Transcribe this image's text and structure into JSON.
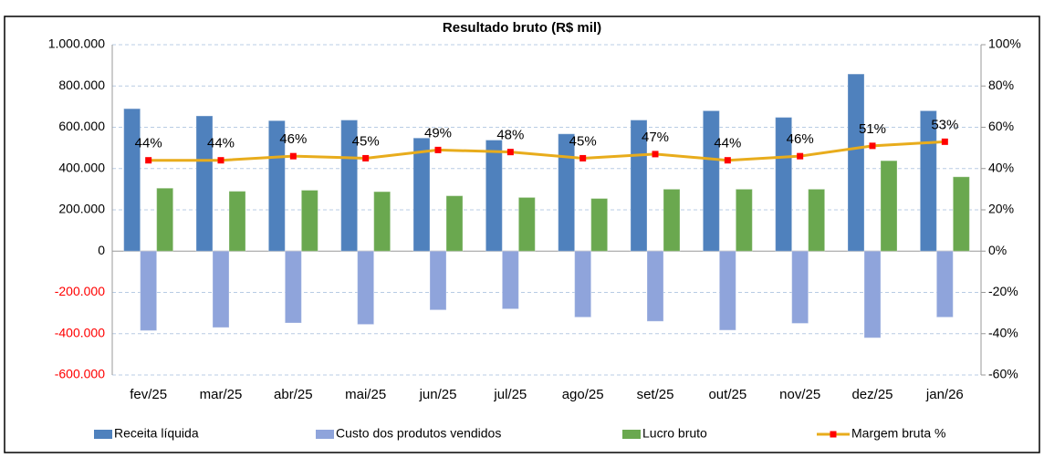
{
  "chart_data": {
    "type": "bar_line",
    "title": "Resultado bruto (R$ mil)",
    "categories": [
      "fev/25",
      "mar/25",
      "abr/25",
      "mai/25",
      "jun/25",
      "jul/25",
      "ago/25",
      "set/25",
      "out/25",
      "nov/25",
      "dez/25",
      "jan/26"
    ],
    "series": [
      {
        "name": "Receita líquida",
        "type": "bar",
        "color": "#4f81bd",
        "values": [
          690000,
          655000,
          632000,
          635000,
          548000,
          538000,
          568000,
          635000,
          680000,
          648000,
          858000,
          680000
        ]
      },
      {
        "name": "Custo dos produtos vendidos",
        "type": "bar",
        "color": "#8fa4db",
        "values": [
          -385000,
          -370000,
          -348000,
          -355000,
          -285000,
          -280000,
          -320000,
          -340000,
          -383000,
          -350000,
          -420000,
          -320000
        ]
      },
      {
        "name": "Lucro bruto",
        "type": "bar",
        "color": "#6aa84f",
        "values": [
          305000,
          290000,
          295000,
          288000,
          268000,
          260000,
          255000,
          300000,
          300000,
          300000,
          438000,
          360000
        ]
      },
      {
        "name": "Margem bruta %",
        "type": "line",
        "axis": "y2",
        "color": "#e8ac1c",
        "marker_color": "#ff0000",
        "values": [
          44,
          44,
          46,
          45,
          49,
          48,
          45,
          47,
          44,
          46,
          51,
          53
        ],
        "value_labels": [
          "44%",
          "44%",
          "46%",
          "45%",
          "49%",
          "48%",
          "45%",
          "47%",
          "44%",
          "46%",
          "51%",
          "53%"
        ]
      }
    ],
    "ylim": [
      -600000,
      1000000
    ],
    "yticks": [
      {
        "value": -600000,
        "label": "-600.000"
      },
      {
        "value": -400000,
        "label": "-400.000"
      },
      {
        "value": -200000,
        "label": "-200.000"
      },
      0,
      {
        "value": 200000,
        "label": "200.000"
      },
      {
        "value": 400000,
        "label": "400.000"
      },
      {
        "value": 600000,
        "label": "600.000"
      },
      {
        "value": 800000,
        "label": "800.000"
      },
      {
        "value": 1000000,
        "label": "1.000.000"
      }
    ],
    "y2lim": [
      -60,
      100
    ],
    "y2ticks": [
      {
        "value": -60,
        "label": "-60%"
      },
      {
        "value": -40,
        "label": "-40%"
      },
      {
        "value": -20,
        "label": "-20%"
      },
      {
        "value": 0,
        "label": "0%"
      },
      {
        "value": 20,
        "label": "20%"
      },
      {
        "value": 40,
        "label": "40%"
      },
      {
        "value": 60,
        "label": "60%"
      },
      {
        "value": 80,
        "label": "80%"
      },
      {
        "value": 100,
        "label": "100%"
      }
    ],
    "negative_tick_color": "#ff0000",
    "grid": true,
    "legend": "bottom"
  }
}
